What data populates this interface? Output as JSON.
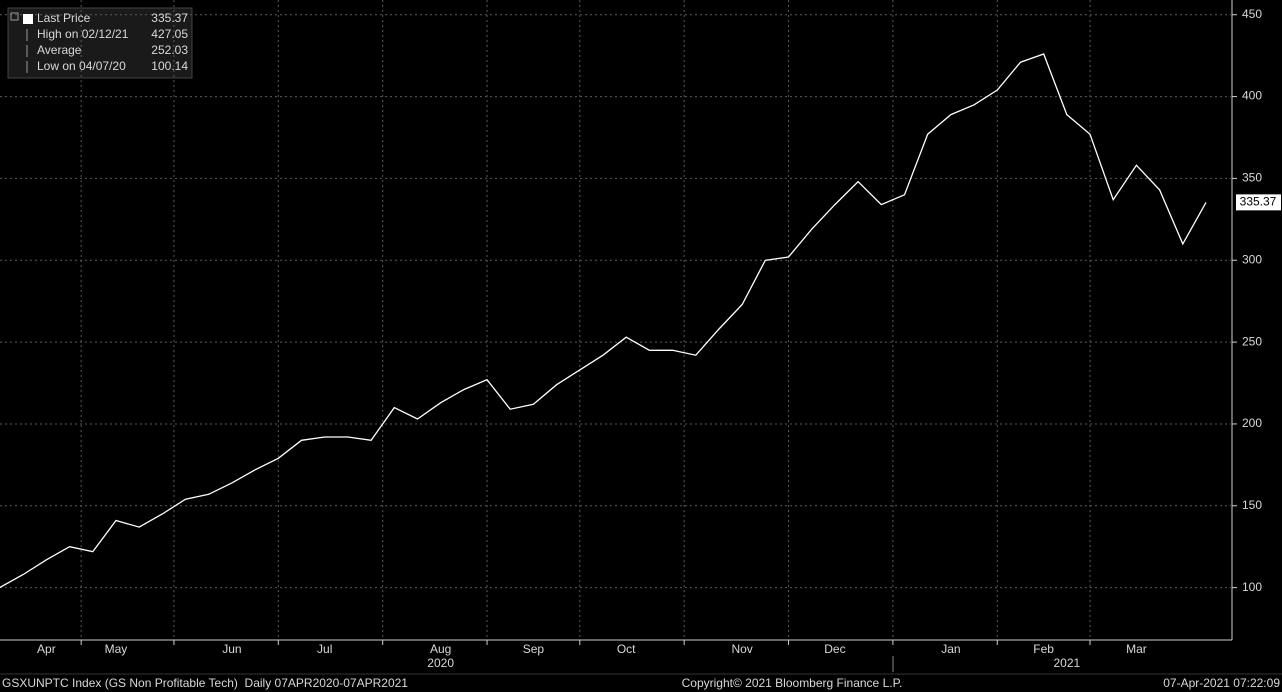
{
  "chart_data": {
    "type": "line",
    "categories": [
      null,
      null,
      "Apr",
      null,
      null,
      "May",
      null,
      null,
      null,
      null,
      "Jun",
      null,
      null,
      null,
      "Jul",
      null,
      null,
      null,
      null,
      "Aug",
      null,
      null,
      null,
      "Sep",
      null,
      null,
      null,
      "Oct",
      null,
      null,
      null,
      null,
      "Nov",
      null,
      null,
      null,
      "Dec",
      null,
      null,
      null,
      null,
      "Jan",
      null,
      null,
      null,
      "Feb",
      null,
      null,
      null,
      "Mar",
      null,
      null,
      null
    ],
    "year_categories": [
      null,
      null,
      null,
      null,
      null,
      null,
      null,
      null,
      null,
      null,
      null,
      null,
      null,
      null,
      null,
      null,
      null,
      null,
      null,
      "2020",
      null,
      null,
      null,
      null,
      null,
      null,
      null,
      null,
      null,
      null,
      null,
      null,
      null,
      null,
      null,
      null,
      null,
      null,
      null,
      null,
      null,
      null,
      null,
      null,
      null,
      null,
      "2021",
      null,
      null,
      null,
      null,
      null,
      null
    ],
    "series": [
      {
        "name": "Last Price",
        "color": "#ffffff",
        "values": [
          100.14,
          108,
          117,
          125,
          122,
          141,
          137,
          145,
          154,
          157,
          164,
          172,
          179,
          190,
          192,
          192,
          190,
          210,
          203,
          213,
          221,
          227,
          209,
          212,
          224,
          233,
          242,
          253,
          245,
          245,
          242,
          258,
          273,
          300,
          302,
          319,
          334,
          348,
          334,
          340,
          377,
          389,
          395,
          404,
          421,
          426,
          389,
          377,
          337,
          358,
          343,
          310,
          335.37
        ]
      }
    ],
    "legend": [
      {
        "label": "Last Price",
        "value": 335.37
      },
      {
        "label": "High on 02/12/21",
        "value": 427.05
      },
      {
        "label": "Average",
        "value": 252.03
      },
      {
        "label": "Low on 04/07/20",
        "value": 100.14
      }
    ],
    "ylim": [
      68,
      459
    ],
    "yticks": [
      100,
      150,
      200,
      250,
      300,
      350,
      400,
      450
    ],
    "grid": true,
    "footer_left": "GSXUNPTC Index (GS Non Profitable Tech)  Daily 07APR2020-07APR2021",
    "footer_center": "Copyright© 2021 Bloomberg Finance L.P.",
    "footer_right": "07-Apr-2021 07:22:09"
  }
}
